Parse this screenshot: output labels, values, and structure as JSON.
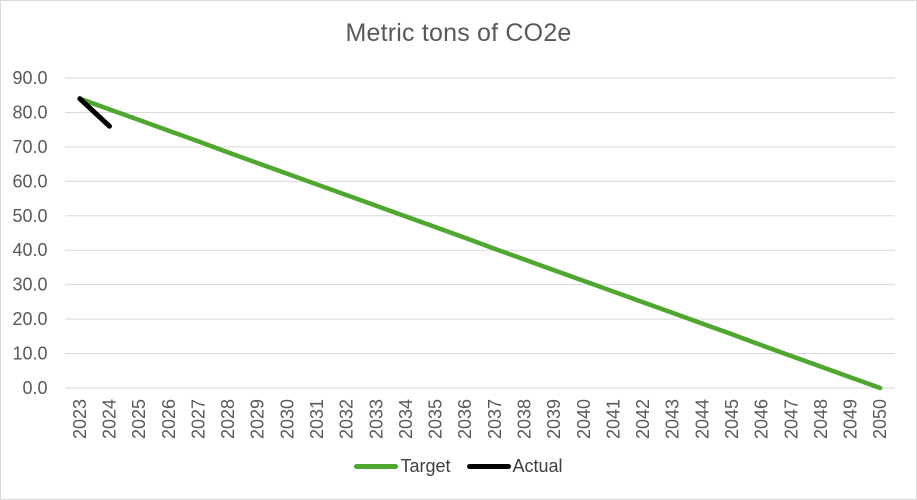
{
  "chart_data": {
    "type": "line",
    "title": "Metric tons of CO2e",
    "categories": [
      "2023",
      "2024",
      "2025",
      "2026",
      "2027",
      "2028",
      "2029",
      "2030",
      "2031",
      "2032",
      "2033",
      "2034",
      "2035",
      "2036",
      "2037",
      "2038",
      "2039",
      "2040",
      "2041",
      "2042",
      "2043",
      "2044",
      "2045",
      "2046",
      "2047",
      "2048",
      "2049",
      "2050"
    ],
    "series": [
      {
        "name": "Target",
        "color": "#4ea72e",
        "stroke_width": 4.5,
        "values": [
          84.0,
          80.9,
          77.8,
          74.7,
          71.6,
          68.4,
          65.3,
          62.2,
          59.1,
          56.0,
          52.9,
          49.8,
          46.7,
          43.6,
          40.4,
          37.3,
          34.2,
          31.1,
          28.0,
          24.9,
          21.8,
          18.7,
          15.6,
          12.4,
          9.3,
          6.2,
          3.1,
          0.0
        ]
      },
      {
        "name": "Actual",
        "color": "#000000",
        "stroke_width": 5,
        "values": [
          84.0,
          76.0,
          null,
          null,
          null,
          null,
          null,
          null,
          null,
          null,
          null,
          null,
          null,
          null,
          null,
          null,
          null,
          null,
          null,
          null,
          null,
          null,
          null,
          null,
          null,
          null,
          null,
          null
        ]
      }
    ],
    "ylim": [
      0,
      90
    ],
    "y_tick_labels": [
      "0.0",
      "10.0",
      "20.0",
      "30.0",
      "40.0",
      "50.0",
      "60.0",
      "70.0",
      "80.0",
      "90.0"
    ],
    "x_tick_rotation": -90,
    "grid": "horizontal",
    "gridline_color": "#d9d9d9",
    "axis_text_color": "#595959",
    "legend_position": "bottom"
  }
}
